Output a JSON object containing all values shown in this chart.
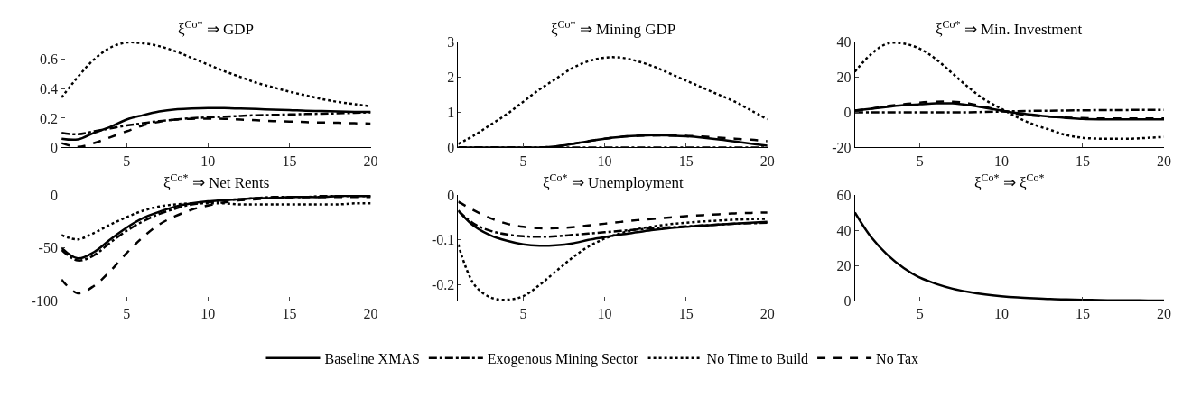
{
  "chart_data": [
    {
      "type": "line",
      "title": "ξ$^{Co*}$ ⇒ GDP",
      "x": [
        1,
        2,
        3,
        4,
        5,
        6,
        7,
        8,
        9,
        10,
        11,
        12,
        13,
        14,
        15,
        16,
        17,
        18,
        19,
        20
      ],
      "xlim": [
        1,
        20
      ],
      "xticks": [
        5,
        10,
        15,
        20
      ],
      "ylim": [
        0,
        0.72
      ],
      "yticks": [
        0,
        0.2,
        0.4,
        0.6
      ],
      "legend": "bottom",
      "series": [
        {
          "name": "Baseline XMAS",
          "color": "#000000",
          "line_style": "solid",
          "values": [
            0.06,
            0.055,
            0.1,
            0.14,
            0.19,
            0.22,
            0.245,
            0.26,
            0.265,
            0.268,
            0.268,
            0.265,
            0.262,
            0.258,
            0.255,
            0.25,
            0.248,
            0.245,
            0.243,
            0.242
          ]
        },
        {
          "name": "Exogenous Mining Sector",
          "color": "#000000",
          "line_style": "dashdot",
          "values": [
            0.1,
            0.09,
            0.11,
            0.13,
            0.15,
            0.165,
            0.18,
            0.19,
            0.2,
            0.205,
            0.21,
            0.215,
            0.22,
            0.222,
            0.225,
            0.228,
            0.23,
            0.233,
            0.236,
            0.24
          ]
        },
        {
          "name": "No Time to Build",
          "color": "#000000",
          "line_style": "dotted",
          "values": [
            0.34,
            0.48,
            0.6,
            0.68,
            0.715,
            0.71,
            0.69,
            0.655,
            0.61,
            0.565,
            0.52,
            0.48,
            0.44,
            0.41,
            0.38,
            0.355,
            0.33,
            0.31,
            0.295,
            0.28
          ]
        },
        {
          "name": "No Tax",
          "color": "#000000",
          "line_style": "dashed",
          "values": [
            0.03,
            0.005,
            0.03,
            0.07,
            0.11,
            0.15,
            0.175,
            0.19,
            0.195,
            0.197,
            0.195,
            0.19,
            0.185,
            0.18,
            0.177,
            0.173,
            0.17,
            0.168,
            0.165,
            0.163
          ]
        }
      ]
    },
    {
      "type": "line",
      "title": "ξ$^{Co*}$ ⇒ Mining GDP",
      "x": [
        1,
        2,
        3,
        4,
        5,
        6,
        7,
        8,
        9,
        10,
        11,
        12,
        13,
        14,
        15,
        16,
        17,
        18,
        19,
        20
      ],
      "xlim": [
        1,
        20
      ],
      "xticks": [
        5,
        10,
        15,
        20
      ],
      "ylim": [
        0,
        3
      ],
      "yticks": [
        0,
        1,
        2,
        3
      ],
      "series": [
        {
          "color": "#000000",
          "line_style": "solid",
          "values": [
            0,
            0,
            0,
            0,
            0,
            0,
            0.03,
            0.1,
            0.18,
            0.25,
            0.3,
            0.33,
            0.35,
            0.34,
            0.32,
            0.28,
            0.23,
            0.17,
            0.11,
            0.05
          ]
        },
        {
          "color": "#000000",
          "line_style": "dashdot",
          "values": [
            0,
            0,
            0,
            0,
            0,
            0,
            0,
            0,
            0,
            0,
            0,
            0,
            0,
            0,
            0,
            0,
            0,
            0,
            0,
            0
          ]
        },
        {
          "color": "#000000",
          "line_style": "dotted",
          "values": [
            0.1,
            0.35,
            0.65,
            0.95,
            1.3,
            1.65,
            1.95,
            2.25,
            2.45,
            2.55,
            2.55,
            2.45,
            2.3,
            2.1,
            1.9,
            1.7,
            1.5,
            1.3,
            1.05,
            0.8
          ]
        },
        {
          "color": "#000000",
          "line_style": "dashed",
          "values": [
            0,
            0,
            0,
            0,
            0,
            0,
            0.03,
            0.1,
            0.18,
            0.25,
            0.3,
            0.33,
            0.34,
            0.34,
            0.33,
            0.31,
            0.28,
            0.25,
            0.22,
            0.18
          ]
        }
      ]
    },
    {
      "type": "line",
      "title": "ξ$^{Co*}$ ⇒ Min. Investment",
      "x": [
        1,
        2,
        3,
        4,
        5,
        6,
        7,
        8,
        9,
        10,
        11,
        12,
        13,
        14,
        15,
        16,
        17,
        18,
        19,
        20
      ],
      "xlim": [
        1,
        20
      ],
      "xticks": [
        5,
        10,
        15,
        20
      ],
      "ylim": [
        -20,
        40
      ],
      "yticks": [
        -20,
        0,
        20,
        40
      ],
      "series": [
        {
          "color": "#000000",
          "line_style": "solid",
          "values": [
            1,
            2,
            3,
            4,
            4.5,
            5,
            5,
            4,
            2.5,
            1,
            -0.5,
            -1.5,
            -2.5,
            -3.2,
            -3.8,
            -4,
            -4,
            -4,
            -4,
            -4
          ]
        },
        {
          "color": "#000000",
          "line_style": "dashdot",
          "values": [
            0,
            0,
            0,
            0,
            0,
            0,
            0,
            0,
            0.2,
            0.4,
            0.6,
            0.8,
            0.9,
            1,
            1.1,
            1.2,
            1.2,
            1.3,
            1.3,
            1.3
          ]
        },
        {
          "color": "#000000",
          "line_style": "dotted",
          "values": [
            23,
            33,
            39,
            39,
            36,
            30,
            22,
            14,
            7,
            2,
            -3,
            -7,
            -10,
            -13,
            -14.5,
            -15,
            -15,
            -15,
            -14.5,
            -14
          ]
        },
        {
          "color": "#000000",
          "line_style": "dashed",
          "values": [
            1,
            2,
            3.5,
            4.5,
            5.5,
            6,
            6,
            5,
            3,
            1,
            -1,
            -2,
            -2.5,
            -3,
            -3.3,
            -3.5,
            -3.5,
            -3.5,
            -3.5,
            -3.5
          ]
        }
      ]
    },
    {
      "type": "line",
      "title": "ξ$^{Co*}$ ⇒ Net Rents",
      "x": [
        1,
        2,
        3,
        4,
        5,
        6,
        7,
        8,
        9,
        10,
        11,
        12,
        13,
        14,
        15,
        16,
        17,
        18,
        19,
        20
      ],
      "xlim": [
        1,
        20
      ],
      "xticks": [
        5,
        10,
        15,
        20
      ],
      "ylim": [
        -100,
        0
      ],
      "yticks": [
        -100,
        -50,
        0
      ],
      "series": [
        {
          "color": "#000000",
          "line_style": "solid",
          "values": [
            -50,
            -60,
            -54,
            -42,
            -31,
            -22,
            -16,
            -11,
            -8,
            -6,
            -5,
            -4,
            -3,
            -3,
            -2,
            -2,
            -2,
            -1,
            -1,
            -1
          ]
        },
        {
          "color": "#000000",
          "line_style": "dashdot",
          "values": [
            -52,
            -62,
            -57,
            -45,
            -34,
            -25,
            -18,
            -13,
            -9,
            -7,
            -5,
            -4,
            -3,
            -2,
            -2,
            -2,
            -1,
            -1,
            -1,
            -1
          ]
        },
        {
          "color": "#000000",
          "line_style": "dotted",
          "values": [
            -38,
            -42,
            -36,
            -28,
            -21,
            -15,
            -11,
            -9,
            -8,
            -8,
            -8,
            -9,
            -9,
            -9,
            -9,
            -9,
            -9,
            -9,
            -8,
            -8
          ]
        },
        {
          "color": "#000000",
          "line_style": "dashed",
          "values": [
            -80,
            -93,
            -86,
            -72,
            -55,
            -40,
            -28,
            -20,
            -14,
            -10,
            -7,
            -5,
            -4,
            -3,
            -3,
            -2,
            -2,
            -2,
            -2,
            -2
          ]
        }
      ]
    },
    {
      "type": "line",
      "title": "ξ$^{Co*}$ ⇒ Unemployment",
      "x": [
        1,
        2,
        3,
        4,
        5,
        6,
        7,
        8,
        9,
        10,
        11,
        12,
        13,
        14,
        15,
        16,
        17,
        18,
        19,
        20
      ],
      "xlim": [
        1,
        20
      ],
      "xticks": [
        5,
        10,
        15,
        20
      ],
      "ylim": [
        -0.235,
        0
      ],
      "yticks": [
        -0.2,
        -0.1,
        0
      ],
      "series": [
        {
          "color": "#000000",
          "line_style": "solid",
          "values": [
            -0.035,
            -0.07,
            -0.09,
            -0.102,
            -0.11,
            -0.113,
            -0.112,
            -0.108,
            -0.1,
            -0.094,
            -0.088,
            -0.083,
            -0.078,
            -0.074,
            -0.071,
            -0.068,
            -0.066,
            -0.064,
            -0.062,
            -0.06
          ]
        },
        {
          "color": "#000000",
          "line_style": "dashdot",
          "values": [
            -0.035,
            -0.065,
            -0.08,
            -0.088,
            -0.092,
            -0.093,
            -0.092,
            -0.089,
            -0.086,
            -0.083,
            -0.08,
            -0.077,
            -0.074,
            -0.072,
            -0.07,
            -0.068,
            -0.066,
            -0.064,
            -0.063,
            -0.062
          ]
        },
        {
          "color": "#000000",
          "line_style": "dotted",
          "values": [
            -0.11,
            -0.2,
            -0.228,
            -0.233,
            -0.225,
            -0.2,
            -0.17,
            -0.14,
            -0.115,
            -0.097,
            -0.085,
            -0.076,
            -0.07,
            -0.065,
            -0.062,
            -0.059,
            -0.057,
            -0.055,
            -0.054,
            -0.053
          ]
        },
        {
          "color": "#000000",
          "line_style": "dashed",
          "values": [
            -0.015,
            -0.035,
            -0.052,
            -0.064,
            -0.071,
            -0.074,
            -0.074,
            -0.072,
            -0.068,
            -0.064,
            -0.06,
            -0.056,
            -0.053,
            -0.05,
            -0.047,
            -0.045,
            -0.043,
            -0.041,
            -0.04,
            -0.039
          ]
        }
      ]
    },
    {
      "type": "line",
      "title": "ξ$^{Co*}$ ⇒ ξ$^{Co*}$",
      "x": [
        1,
        2,
        3,
        4,
        5,
        6,
        7,
        8,
        9,
        10,
        11,
        12,
        13,
        14,
        15,
        16,
        17,
        18,
        19,
        20
      ],
      "xlim": [
        1,
        20
      ],
      "xticks": [
        5,
        10,
        15,
        20
      ],
      "ylim": [
        0,
        60
      ],
      "yticks": [
        0,
        20,
        40,
        60
      ],
      "series": [
        {
          "color": "#000000",
          "line_style": "solid",
          "values": [
            50,
            36,
            26,
            18.5,
            13,
            9.5,
            6.8,
            4.9,
            3.5,
            2.5,
            1.8,
            1.3,
            0.9,
            0.7,
            0.5,
            0.3,
            0.2,
            0.2,
            0.1,
            0.1
          ]
        }
      ]
    }
  ]
}
